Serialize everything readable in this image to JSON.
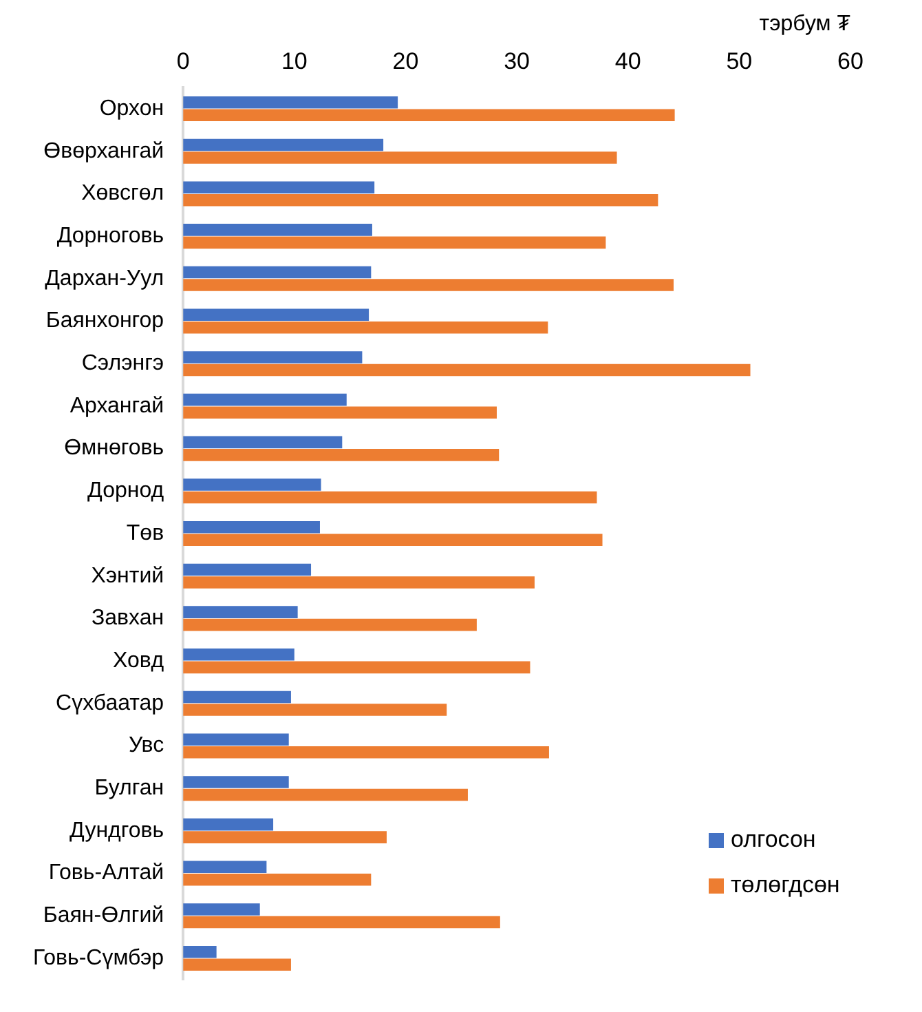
{
  "chart_data": {
    "type": "bar",
    "orientation": "horizontal",
    "xlabel": "тэрбум ₮",
    "categories": [
      "Орхон",
      "Өвөрхангай",
      "Хөвсгөл",
      "Дорноговь",
      "Дархан-Уул",
      "Баянхонгор",
      "Сэлэнгэ",
      "Архангай",
      "Өмнөговь",
      "Дорнод",
      "Төв",
      "Хэнтий",
      "Завхан",
      "Ховд",
      "Сүхбаатар",
      "Увс",
      "Булган",
      "Дундговь",
      "Говь-Алтай",
      "Баян-Өлгий",
      "Говь-Сүмбэр"
    ],
    "series": [
      {
        "name": "олгосон",
        "color": "#4472c4",
        "values": [
          19.3,
          18.0,
          17.2,
          17.0,
          16.9,
          16.7,
          16.1,
          14.7,
          14.3,
          12.4,
          12.3,
          11.5,
          10.3,
          10.0,
          9.7,
          9.5,
          9.5,
          8.1,
          7.5,
          6.9,
          3.0
        ]
      },
      {
        "name": "төлөгдсөн",
        "color": "#ed7d31",
        "values": [
          44.2,
          39.0,
          42.7,
          38.0,
          44.1,
          32.8,
          51.0,
          28.2,
          28.4,
          37.2,
          37.7,
          31.6,
          26.4,
          31.2,
          23.7,
          32.9,
          25.6,
          18.3,
          16.9,
          28.5,
          9.7
        ]
      }
    ],
    "xlim": [
      0,
      60
    ],
    "xticks": [
      0,
      10,
      20,
      30,
      40,
      50,
      60
    ],
    "grid": false,
    "legend": "bottom right"
  }
}
